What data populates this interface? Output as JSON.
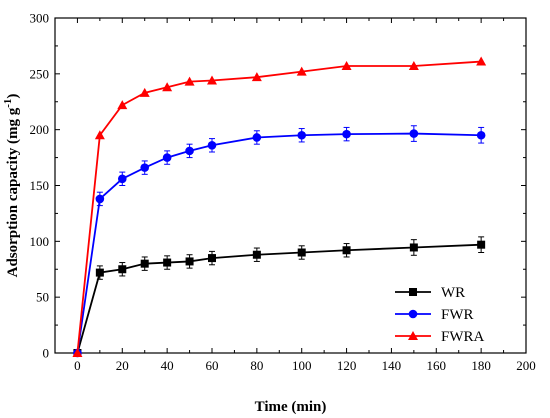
{
  "chart_data": {
    "type": "line",
    "xlabel": "Time (min)",
    "ylabel": {
      "main": "Adsorption capacity (mg g",
      "superscript": "-1",
      "close": ")"
    },
    "xlim": [
      -10,
      200
    ],
    "ylim": [
      0,
      300
    ],
    "x_ticks": [
      0,
      20,
      40,
      60,
      80,
      100,
      120,
      140,
      160,
      180,
      200
    ],
    "y_ticks": [
      0,
      50,
      100,
      150,
      200,
      250,
      300
    ],
    "grid": false,
    "legend_position": "bottom-right",
    "series": [
      {
        "name": "WR",
        "color": "#000000",
        "marker": "square",
        "x": [
          0,
          10,
          20,
          30,
          40,
          50,
          60,
          80,
          100,
          120,
          150,
          180
        ],
        "y": [
          0,
          72,
          75,
          80,
          81,
          82,
          85,
          88,
          90,
          92,
          94.5,
          97
        ],
        "err": [
          0,
          6,
          6,
          6,
          6,
          6,
          6,
          6,
          6,
          6,
          7,
          7
        ]
      },
      {
        "name": "FWR",
        "color": "#0000ff",
        "marker": "circle",
        "x": [
          0,
          10,
          20,
          30,
          40,
          50,
          60,
          80,
          100,
          120,
          150,
          180
        ],
        "y": [
          0,
          138,
          156,
          166,
          175,
          181,
          186,
          193,
          195,
          196,
          196.5,
          195
        ],
        "err": [
          0,
          6,
          6,
          6,
          6,
          6,
          6,
          6,
          6,
          6,
          7,
          7
        ]
      },
      {
        "name": "FWRA",
        "color": "#ff0000",
        "marker": "triangle",
        "x": [
          0,
          10,
          20,
          30,
          40,
          50,
          60,
          80,
          100,
          120,
          150,
          180
        ],
        "y": [
          0,
          195,
          222,
          233,
          238,
          243,
          244,
          247,
          252,
          257,
          257,
          261
        ],
        "err": [
          0,
          0,
          0,
          0,
          0,
          0,
          0,
          0,
          0,
          0,
          0,
          0
        ]
      }
    ]
  }
}
